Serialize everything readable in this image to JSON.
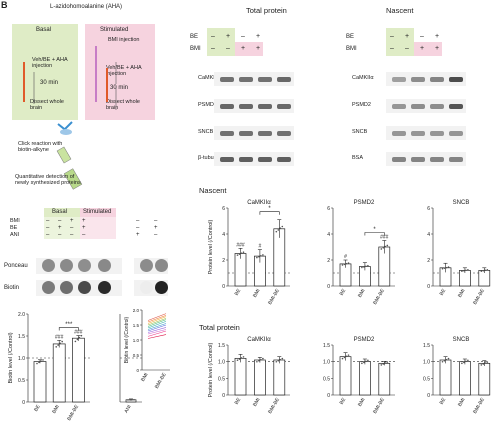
{
  "panel_label": "B",
  "reagent": "L-azidohomoalanine (AHA)",
  "schematic": {
    "basal": {
      "title": "Basal",
      "step1": "Veh/BE + AHA injection",
      "time": "30 min",
      "step2": "Dissect whole brain"
    },
    "stimulated": {
      "title": "Stimulated",
      "step0": "BMI injection",
      "step1": "Veh/BE + AHA injection",
      "time": "30 min",
      "step2": "Dissect whole brain"
    },
    "click": "Click reaction with biotin-alkyne",
    "detect": "Quantitative detection of newly synthesized proteins"
  },
  "left_blot": {
    "headers": {
      "basal": "Basal",
      "stimulated": "Stimulated"
    },
    "row_labels": [
      "BMI",
      "BE",
      "ANI"
    ],
    "signs": [
      [
        "–",
        "–",
        "+",
        "+",
        "–",
        "–"
      ],
      [
        "–",
        "+",
        "–",
        "+",
        "–",
        "+"
      ],
      [
        "–",
        "–",
        "–",
        "–",
        "+",
        "–"
      ]
    ],
    "rows": [
      "Ponceau",
      "Biotin"
    ]
  },
  "top_blots": {
    "total_header": "Total protein",
    "nascent_header": "Nascent",
    "row_labels": [
      "BE",
      "BMI"
    ],
    "signs": [
      [
        "–",
        "+",
        "–",
        "+"
      ],
      [
        "–",
        "–",
        "+",
        "+"
      ]
    ],
    "total_rows": [
      "CaMKIIα",
      "PSMD2",
      "SNCB",
      "β-tubulin"
    ],
    "nascent_rows": [
      "CaMKIIα",
      "PSMD2",
      "SNCB",
      "BSA"
    ]
  },
  "nascent_title": "Nascent",
  "total_title": "Total protein",
  "chart_data": [
    {
      "type": "bar",
      "panel": "biotin",
      "categories": [
        "BE",
        "BMI",
        "BMI-BE"
      ],
      "values": [
        0.92,
        1.32,
        1.45
      ],
      "errors": [
        0.04,
        0.08,
        0.06
      ],
      "ylabel": "Biotin level (/Control)",
      "ylim": [
        0,
        2.0
      ],
      "yticks": [
        "0",
        "0.5",
        "1.0",
        "1.5",
        "2.0"
      ],
      "sig": [
        "",
        "###",
        "###"
      ],
      "bracket": "***"
    },
    {
      "type": "bar",
      "panel": "ani",
      "categories": [
        "ANI"
      ],
      "values": [
        0.05
      ],
      "errors": [
        0.02
      ],
      "ylim": [
        0,
        2.0
      ]
    },
    {
      "type": "line",
      "panel": "paired",
      "categories": [
        "BMI",
        "BMI-BE"
      ],
      "ylabel": "Biotin level (/Control)",
      "ylim": [
        0,
        2.0
      ],
      "yticks": [
        "0",
        "0.5",
        "1.0",
        "1.5",
        "2.0"
      ],
      "pairs": [
        [
          1.05,
          1.18
        ],
        [
          1.12,
          1.3
        ],
        [
          1.2,
          1.35
        ],
        [
          1.25,
          1.42
        ],
        [
          1.3,
          1.5
        ],
        [
          1.35,
          1.55
        ],
        [
          1.4,
          1.62
        ],
        [
          1.45,
          1.68
        ],
        [
          1.5,
          1.72
        ],
        [
          1.55,
          1.78
        ],
        [
          1.6,
          1.82
        ],
        [
          1.65,
          1.88
        ]
      ]
    },
    {
      "type": "bar",
      "panel": "nascent-camk",
      "title": "CaMKIIα",
      "categories": [
        "BE",
        "BMI",
        "BMI-BE"
      ],
      "values": [
        2.5,
        2.3,
        4.4
      ],
      "errors": [
        0.4,
        0.5,
        0.7
      ],
      "ylabel": "Protein level (/Control)",
      "ylim": [
        0,
        6
      ],
      "yticks": [
        "0",
        "2",
        "4",
        "6"
      ],
      "sig": [
        "###",
        "#",
        ""
      ],
      "bracket": "*"
    },
    {
      "type": "bar",
      "panel": "nascent-psmd2",
      "title": "PSMD2",
      "categories": [
        "BE",
        "BMI",
        "BMI-BE"
      ],
      "values": [
        1.7,
        1.5,
        3.0
      ],
      "errors": [
        0.3,
        0.3,
        0.5
      ],
      "ylim": [
        0,
        6
      ],
      "yticks": [
        "0",
        "2",
        "4",
        "6"
      ],
      "sig": [
        "#",
        "",
        "###"
      ],
      "bracket": "*"
    },
    {
      "type": "bar",
      "panel": "nascent-sncb",
      "title": "SNCB",
      "categories": [
        "BE",
        "BMI",
        "BMI-BE"
      ],
      "values": [
        1.4,
        1.2,
        1.2
      ],
      "errors": [
        0.35,
        0.2,
        0.2
      ],
      "ylim": [
        0,
        6
      ],
      "yticks": [
        "0",
        "2",
        "4",
        "6"
      ],
      "sig": [
        "",
        "",
        ""
      ],
      "bracket": ""
    },
    {
      "type": "bar",
      "panel": "total-camk",
      "title": "CaMKIIα",
      "categories": [
        "BE",
        "BMI",
        "BMI-BE"
      ],
      "values": [
        1.1,
        1.05,
        1.05
      ],
      "errors": [
        0.12,
        0.08,
        0.1
      ],
      "ylabel": "Protein level (/Control)",
      "ylim": [
        0,
        1.5
      ],
      "yticks": [
        "0",
        "0.5",
        "1.0",
        "1.5"
      ]
    },
    {
      "type": "bar",
      "panel": "total-psmd2",
      "title": "PSMD2",
      "categories": [
        "BE",
        "BMI",
        "BMI-BE"
      ],
      "values": [
        1.15,
        1.0,
        0.95
      ],
      "errors": [
        0.12,
        0.08,
        0.06
      ],
      "ylim": [
        0,
        1.5
      ],
      "yticks": [
        "0",
        "0.5",
        "1.0",
        "1.5"
      ]
    },
    {
      "type": "bar",
      "panel": "total-sncb",
      "title": "SNCB",
      "categories": [
        "BE",
        "BMI",
        "BMI-BE"
      ],
      "values": [
        1.05,
        1.0,
        0.95
      ],
      "errors": [
        0.1,
        0.08,
        0.08
      ],
      "ylim": [
        0,
        1.5
      ],
      "yticks": [
        "0",
        "0.5",
        "1.0",
        "1.5"
      ]
    }
  ]
}
